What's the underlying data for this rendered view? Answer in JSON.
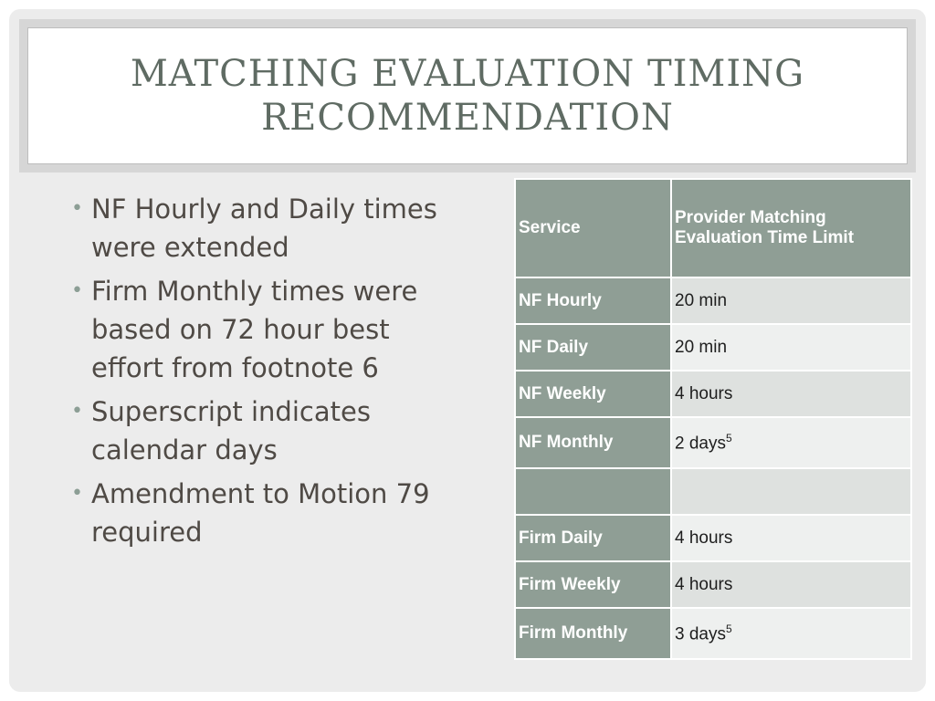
{
  "slide": {
    "title": "Matching Evaluation Timing Recommendation"
  },
  "bullets": [
    "NF Hourly and Daily times were extended",
    "Firm Monthly times were based on 72 hour best effort from footnote 6",
    "Superscript indicates calendar days",
    "Amendment to Motion 79 required"
  ],
  "table": {
    "headers": [
      "Service",
      "Provider Matching Evaluation Time Limit"
    ],
    "rows": [
      {
        "service": "NF Hourly",
        "limit": "20 min",
        "sup": ""
      },
      {
        "service": "NF Daily",
        "limit": "20 min",
        "sup": ""
      },
      {
        "service": "NF Weekly",
        "limit": "4 hours",
        "sup": ""
      },
      {
        "service": "NF Monthly",
        "limit": "2 days",
        "sup": "5"
      },
      {
        "service": "",
        "limit": "",
        "sup": ""
      },
      {
        "service": "Firm Daily",
        "limit": "4 hours",
        "sup": ""
      },
      {
        "service": "Firm Weekly",
        "limit": "4 hours",
        "sup": ""
      },
      {
        "service": "Firm Monthly",
        "limit": "3 days",
        "sup": "5"
      }
    ]
  },
  "colors": {
    "header_fill": "#8f9e95",
    "title_text": "#5f6b63",
    "body_text": "#4f4a45"
  }
}
